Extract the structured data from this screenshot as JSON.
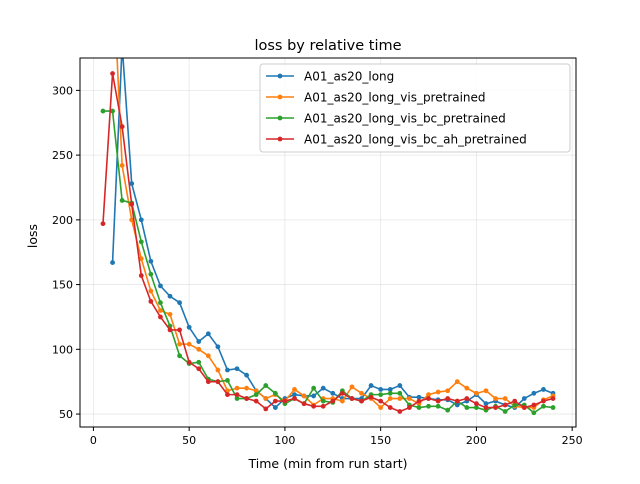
{
  "chart_data": {
    "type": "line",
    "title": "loss by relative time",
    "xlabel": "Time (min from run start)",
    "ylabel": "loss",
    "xlim": [
      -7,
      252
    ],
    "ylim": [
      40,
      325
    ],
    "xticks": [
      0,
      50,
      100,
      150,
      200,
      250
    ],
    "yticks": [
      50,
      100,
      150,
      200,
      250,
      300
    ],
    "grid": true,
    "legend_placement": "top-right",
    "x": [
      5,
      10,
      15,
      20,
      25,
      30,
      35,
      40,
      45,
      50,
      55,
      60,
      65,
      70,
      75,
      80,
      85,
      90,
      95,
      100,
      105,
      110,
      115,
      120,
      125,
      130,
      135,
      140,
      145,
      150,
      155,
      160,
      165,
      170,
      175,
      180,
      185,
      190,
      195,
      200,
      205,
      210,
      215,
      220,
      225,
      230,
      235,
      240
    ],
    "series": [
      {
        "name": "A01_as20_long",
        "color": "#1f77b4",
        "values": [
          null,
          167,
          335,
          228,
          200,
          168,
          149,
          141,
          136,
          117,
          106,
          112,
          102,
          84,
          85,
          80,
          68,
          62,
          55,
          62,
          65,
          64,
          64,
          70,
          66,
          62,
          62,
          62,
          72,
          69,
          69,
          72,
          63,
          63,
          62,
          61,
          61,
          57,
          60,
          65,
          58,
          60,
          57,
          55,
          62,
          66,
          69,
          66
        ]
      },
      {
        "name": "A01_as20_long_vis_pretrained",
        "color": "#ff7f0e",
        "values": [
          null,
          400,
          242,
          200,
          170,
          145,
          130,
          127,
          104,
          104,
          100,
          95,
          84,
          68,
          70,
          70,
          68,
          62,
          65,
          60,
          69,
          64,
          57,
          62,
          62,
          60,
          71,
          66,
          62,
          55,
          62,
          62,
          62,
          58,
          65,
          67,
          68,
          75,
          70,
          66,
          68,
          62,
          62,
          56,
          55,
          55,
          61,
          64
        ]
      },
      {
        "name": "A01_as20_long_vis_bc_pretrained",
        "color": "#2ca02c",
        "values": [
          284,
          284,
          215,
          213,
          183,
          158,
          136,
          118,
          95,
          89,
          90,
          77,
          75,
          76,
          62,
          62,
          65,
          72,
          66,
          58,
          62,
          58,
          70,
          60,
          59,
          68,
          62,
          60,
          65,
          65,
          66,
          66,
          57,
          55,
          56,
          56,
          53,
          60,
          55,
          55,
          53,
          56,
          52,
          57,
          57,
          51,
          56,
          55
        ]
      },
      {
        "name": "A01_as20_long_vis_bc_ah_pretrained",
        "color": "#d62728",
        "values": [
          197,
          313,
          272,
          212,
          157,
          137,
          125,
          115,
          115,
          90,
          85,
          75,
          75,
          65,
          65,
          62,
          60,
          54,
          60,
          60,
          62,
          58,
          56,
          56,
          60,
          66,
          62,
          60,
          63,
          60,
          55,
          52,
          55,
          60,
          62,
          60,
          62,
          60,
          62,
          58,
          55,
          55,
          57,
          60,
          55,
          57,
          60,
          62
        ]
      }
    ]
  }
}
